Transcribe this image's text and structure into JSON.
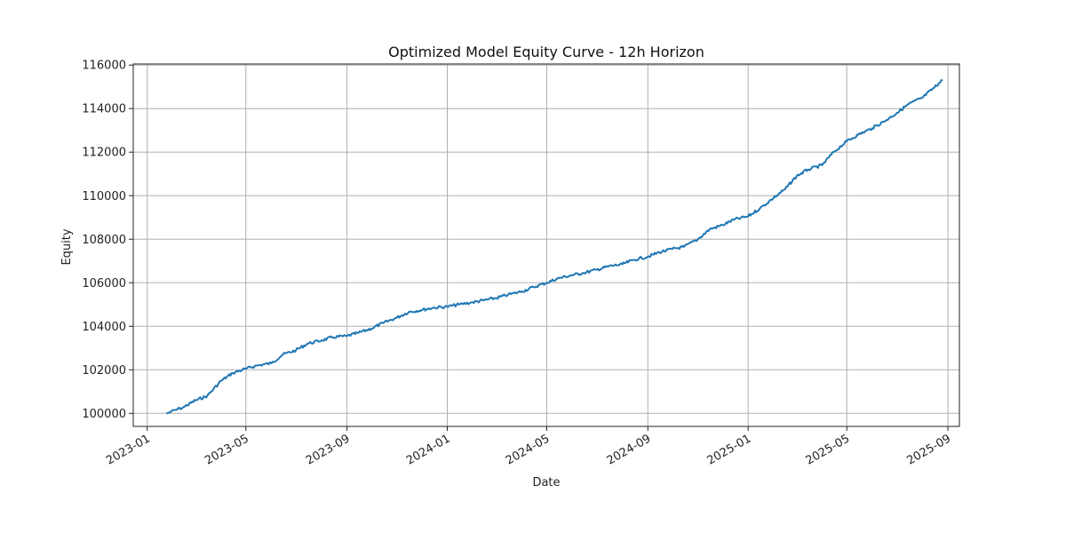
{
  "chart_data": {
    "type": "line",
    "title": "Optimized Model Equity Curve - 12h Horizon",
    "xlabel": "Date",
    "ylabel": "Equity",
    "grid": true,
    "x_range": [
      "2022-12-15",
      "2025-09-15"
    ],
    "ylim": [
      99400,
      116050
    ],
    "x_ticks": [
      "2023-01",
      "2023-05",
      "2023-09",
      "2024-01",
      "2024-05",
      "2024-09",
      "2025-01",
      "2025-05",
      "2025-09"
    ],
    "x_tick_dates": [
      "2023-01-01",
      "2023-05-01",
      "2023-09-01",
      "2024-01-01",
      "2024-05-01",
      "2024-09-01",
      "2025-01-01",
      "2025-05-01",
      "2025-09-01"
    ],
    "y_ticks": [
      100000,
      102000,
      104000,
      106000,
      108000,
      110000,
      112000,
      114000,
      116000
    ],
    "series": [
      {
        "color": "#1f77b4",
        "x": [
          "2023-01-25",
          "2023-02-15",
          "2023-03-01",
          "2023-03-15",
          "2023-04-01",
          "2023-04-15",
          "2023-05-01",
          "2023-05-15",
          "2023-06-01",
          "2023-06-15",
          "2023-07-01",
          "2023-07-15",
          "2023-08-01",
          "2023-08-15",
          "2023-09-01",
          "2023-09-15",
          "2023-10-01",
          "2023-10-15",
          "2023-11-01",
          "2023-11-15",
          "2023-12-01",
          "2023-12-15",
          "2024-01-01",
          "2024-01-15",
          "2024-02-01",
          "2024-02-15",
          "2024-03-01",
          "2024-03-15",
          "2024-04-01",
          "2024-04-15",
          "2024-05-01",
          "2024-05-15",
          "2024-06-01",
          "2024-06-15",
          "2024-07-01",
          "2024-07-15",
          "2024-08-01",
          "2024-08-15",
          "2024-09-01",
          "2024-09-15",
          "2024-10-01",
          "2024-10-15",
          "2024-11-01",
          "2024-11-15",
          "2024-12-01",
          "2024-12-15",
          "2025-01-01",
          "2025-01-15",
          "2025-02-01",
          "2025-02-15",
          "2025-03-01",
          "2025-03-15",
          "2025-04-01",
          "2025-04-15",
          "2025-05-01",
          "2025-05-15",
          "2025-06-01",
          "2025-06-15",
          "2025-07-01",
          "2025-07-15",
          "2025-08-01",
          "2025-08-15",
          "2025-08-25"
        ],
        "values": [
          100000,
          100300,
          100600,
          100800,
          101500,
          101850,
          102050,
          102200,
          102300,
          102700,
          102900,
          103200,
          103350,
          103500,
          103550,
          103700,
          103900,
          104150,
          104400,
          104650,
          104750,
          104850,
          104900,
          105000,
          105100,
          105200,
          105300,
          105450,
          105600,
          105800,
          106000,
          106200,
          106350,
          106450,
          106600,
          106750,
          106850,
          107050,
          107200,
          107400,
          107550,
          107650,
          108000,
          108450,
          108650,
          108900,
          109050,
          109400,
          109900,
          110300,
          110900,
          111200,
          111400,
          112000,
          112500,
          112800,
          113100,
          113400,
          113800,
          114200,
          114500,
          114950,
          115300
        ]
      }
    ]
  }
}
